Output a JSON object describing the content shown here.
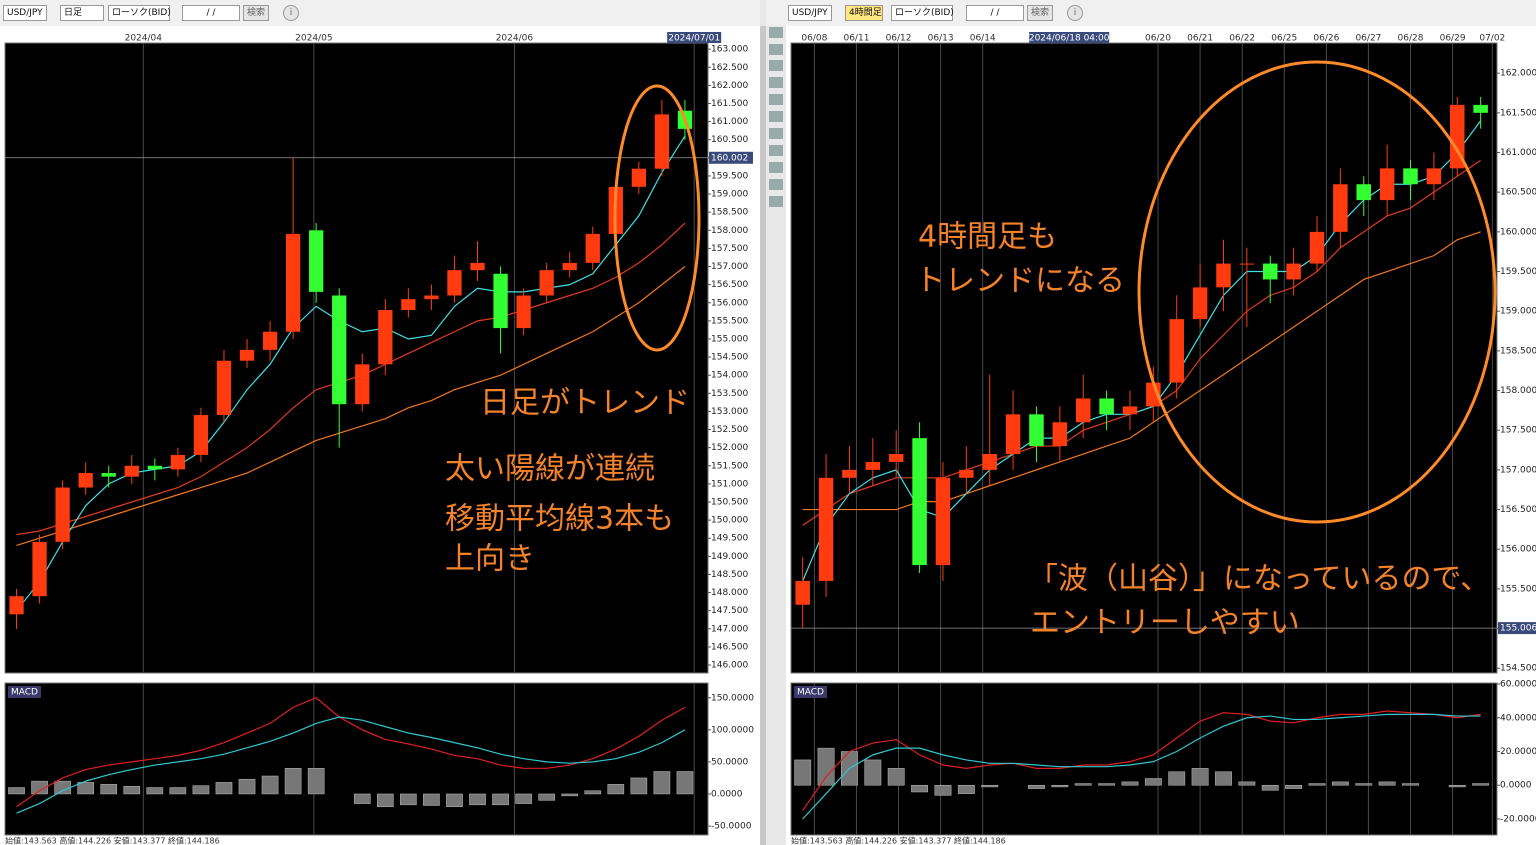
{
  "toolbars": [
    {
      "symbol": "USD/JPY",
      "period": "日足",
      "price_type": "ローソク(BID)",
      "date": "/ /",
      "search": "検索"
    },
    {
      "symbol": "USD/JPY",
      "period": "4時間足",
      "price_type": "ローソク(BID)",
      "date": "/ /",
      "search": "検索"
    }
  ],
  "status_bar": [
    "始値:143.563 高値:144.226 安値:143.377 終値:144.186",
    "始値:143.563 高値:144.226 安値:143.377 終値:144.186"
  ],
  "chart_data": [
    {
      "type": "candlestick",
      "xlim": [
        -0.5,
        30
      ],
      "ylim": [
        145.78,
        163.17
      ],
      "xticks": [
        {
          "value": 5.5,
          "label": "2024/04"
        },
        {
          "value": 12.9,
          "label": "2024/05"
        },
        {
          "value": 21.6,
          "label": "2024/06"
        },
        {
          "value": 29.4,
          "label": "2024/07/01"
        }
      ],
      "yticks": [
        {
          "value": 163,
          "label": "163.000"
        },
        {
          "value": 162.5,
          "label": "162.500"
        },
        {
          "value": 162,
          "label": "162.000"
        },
        {
          "value": 161.5,
          "label": "161.500"
        },
        {
          "value": 161,
          "label": "161.000"
        },
        {
          "value": 160.5,
          "label": "160.500"
        },
        {
          "value": 160,
          "label": "160.000"
        },
        {
          "value": 159.5,
          "label": "159.500"
        },
        {
          "value": 159,
          "label": "159.000"
        },
        {
          "value": 158.5,
          "label": "158.500"
        },
        {
          "value": 158,
          "label": "158.000"
        },
        {
          "value": 157.5,
          "label": "157.500"
        },
        {
          "value": 157,
          "label": "157.000"
        },
        {
          "value": 156.5,
          "label": "156.500"
        },
        {
          "value": 156,
          "label": "156.000"
        },
        {
          "value": 155.5,
          "label": "155.500"
        },
        {
          "value": 155,
          "label": "155.000"
        },
        {
          "value": 154.5,
          "label": "154.500"
        },
        {
          "value": 154,
          "label": "154.000"
        },
        {
          "value": 153.5,
          "label": "153.500"
        },
        {
          "value": 153,
          "label": "153.000"
        },
        {
          "value": 152.5,
          "label": "152.500"
        },
        {
          "value": 152,
          "label": "152.000"
        },
        {
          "value": 151.5,
          "label": "151.500"
        },
        {
          "value": 151,
          "label": "151.000"
        },
        {
          "value": 150.5,
          "label": "150.500"
        },
        {
          "value": 150,
          "label": "150.000"
        },
        {
          "value": 149.5,
          "label": "149.500"
        },
        {
          "value": 149,
          "label": "149.000"
        },
        {
          "value": 148.5,
          "label": "148.500"
        },
        {
          "value": 148,
          "label": "148.000"
        },
        {
          "value": 147.5,
          "label": "147.500"
        },
        {
          "value": 147,
          "label": "147.000"
        },
        {
          "value": 146.5,
          "label": "146.500"
        },
        {
          "value": 146,
          "label": "146.000"
        }
      ],
      "crosshair": 160.002,
      "up_color": "#ff3b0f",
      "down_color": "#33ff33",
      "open": [
        147.4,
        147.9,
        149.4,
        150.9,
        151.3,
        151.2,
        151.5,
        151.4,
        151.8,
        152.9,
        154.4,
        154.7,
        155.2,
        158.0,
        156.2,
        153.2,
        154.3,
        155.8,
        156.1,
        156.2,
        156.9,
        156.8,
        155.3,
        156.2,
        156.9,
        157.1,
        157.9,
        159.2,
        159.7,
        161.3
      ],
      "high": [
        148.1,
        149.6,
        151.1,
        151.6,
        151.5,
        151.8,
        151.7,
        152.0,
        153.1,
        154.7,
        155.0,
        155.5,
        160.0,
        158.2,
        156.4,
        154.6,
        156.1,
        156.4,
        156.5,
        157.3,
        157.7,
        157.0,
        156.4,
        157.1,
        157.4,
        158.1,
        159.4,
        159.9,
        161.6,
        161.6
      ],
      "low": [
        147.0,
        147.7,
        149.2,
        150.7,
        150.9,
        151.0,
        151.1,
        151.2,
        151.6,
        152.7,
        154.2,
        154.4,
        155.0,
        156.0,
        152.0,
        153.0,
        154.0,
        155.6,
        155.8,
        156.0,
        156.6,
        154.6,
        155.1,
        156.0,
        156.7,
        156.9,
        157.7,
        159.0,
        159.5,
        160.5
      ],
      "close": [
        147.9,
        149.4,
        150.9,
        151.3,
        151.2,
        151.5,
        151.4,
        151.8,
        152.9,
        154.4,
        154.7,
        155.2,
        157.9,
        156.3,
        153.2,
        154.3,
        155.8,
        156.1,
        156.2,
        156.9,
        157.1,
        155.3,
        156.2,
        156.9,
        157.1,
        157.9,
        159.2,
        159.7,
        161.2,
        160.8
      ],
      "series": [
        {
          "color": "#f07820",
          "values": [
            149.3,
            149.5,
            149.7,
            149.9,
            150.1,
            150.3,
            150.5,
            150.7,
            150.9,
            151.1,
            151.3,
            151.6,
            151.9,
            152.2,
            152.4,
            152.6,
            152.8,
            153.1,
            153.3,
            153.6,
            153.8,
            154.0,
            154.3,
            154.6,
            154.9,
            155.2,
            155.6,
            156.0,
            156.5,
            157.0
          ]
        },
        {
          "color": "#e03a20",
          "values": [
            149.6,
            149.7,
            149.9,
            150.1,
            150.3,
            150.5,
            150.7,
            150.9,
            151.2,
            151.6,
            152.0,
            152.5,
            153.1,
            153.6,
            153.8,
            154.0,
            154.3,
            154.6,
            154.9,
            155.2,
            155.5,
            155.6,
            155.8,
            156.0,
            156.2,
            156.4,
            156.7,
            157.1,
            157.6,
            158.2
          ]
        },
        {
          "color": "#40e0e8",
          "values": [
            147.5,
            148.3,
            149.4,
            150.4,
            151.0,
            151.3,
            151.4,
            151.5,
            151.9,
            152.7,
            153.6,
            154.3,
            155.3,
            155.9,
            155.5,
            155.2,
            155.3,
            155.0,
            155.1,
            155.9,
            156.4,
            156.3,
            156.3,
            156.4,
            156.5,
            156.8,
            157.6,
            158.4,
            159.6,
            160.6
          ]
        }
      ],
      "annotations": [
        "日足がトレンド",
        "太い陽線が連続",
        "移動平均線3本も",
        "上向き"
      ]
    },
    {
      "type": "macd",
      "title": "MACD",
      "ylim": [
        -64,
        173
      ],
      "yticks": [
        {
          "value": 150,
          "label": "150.0000"
        },
        {
          "value": 100,
          "label": "100.0000"
        },
        {
          "value": 50,
          "label": "50.0000"
        },
        {
          "value": 0,
          "label": "0.0000"
        },
        {
          "value": -50,
          "label": "-50.0000"
        }
      ],
      "histogram": [
        10,
        20,
        20,
        18,
        15,
        12,
        10,
        10,
        13,
        18,
        23,
        28,
        40,
        40,
        0,
        -15,
        -20,
        -17,
        -18,
        -20,
        -17,
        -17,
        -15,
        -10,
        -3,
        5,
        15,
        25,
        35,
        35
      ],
      "series": [
        {
          "color": "#e02020",
          "values": [
            -20,
            5,
            25,
            38,
            45,
            50,
            55,
            60,
            68,
            80,
            95,
            110,
            135,
            150,
            120,
            100,
            85,
            78,
            70,
            60,
            55,
            45,
            40,
            40,
            45,
            55,
            70,
            90,
            115,
            135
          ]
        },
        {
          "color": "#30c8d0",
          "values": [
            -30,
            -15,
            5,
            20,
            30,
            38,
            45,
            50,
            55,
            62,
            72,
            82,
            95,
            110,
            120,
            115,
            105,
            95,
            88,
            80,
            72,
            62,
            55,
            50,
            48,
            50,
            55,
            65,
            80,
            100
          ]
        }
      ]
    },
    {
      "type": "candlestick",
      "xlim": [
        -0.5,
        29.7
      ],
      "ylim": [
        154.44,
        162.38
      ],
      "xticks": [
        {
          "value": 0.5,
          "label": "06/08"
        },
        {
          "value": 2.3,
          "label": "06/11"
        },
        {
          "value": 4.1,
          "label": "06/12"
        },
        {
          "value": 5.9,
          "label": "06/13"
        },
        {
          "value": 7.7,
          "label": "06/14"
        },
        {
          "value": 15.2,
          "label": "06/20"
        },
        {
          "value": 17,
          "label": "06/21"
        },
        {
          "value": 18.8,
          "label": "06/22"
        },
        {
          "value": 20.6,
          "label": "06/25"
        },
        {
          "value": 22.4,
          "label": "06/26"
        },
        {
          "value": 24.2,
          "label": "06/27"
        },
        {
          "value": 26,
          "label": "06/28"
        },
        {
          "value": 27.8,
          "label": "06/29"
        },
        {
          "value": 29.5,
          "label": "07/02"
        }
      ],
      "crosshair_x": {
        "value": 11.4,
        "label": "2024/06/18 04:00"
      },
      "yticks": [
        {
          "value": 162,
          "label": "162.000"
        },
        {
          "value": 161.5,
          "label": "161.500"
        },
        {
          "value": 161,
          "label": "161.000"
        },
        {
          "value": 160.5,
          "label": "160.500"
        },
        {
          "value": 160,
          "label": "160.000"
        },
        {
          "value": 159.5,
          "label": "159.500"
        },
        {
          "value": 159,
          "label": "159.000"
        },
        {
          "value": 158.5,
          "label": "158.500"
        },
        {
          "value": 158,
          "label": "158.000"
        },
        {
          "value": 157.5,
          "label": "157.500"
        },
        {
          "value": 157,
          "label": "157.000"
        },
        {
          "value": 156.5,
          "label": "156.500"
        },
        {
          "value": 156,
          "label": "156.000"
        },
        {
          "value": 155.5,
          "label": "155.500"
        },
        {
          "value": 155,
          "label": "155.000"
        },
        {
          "value": 154.5,
          "label": "154.500"
        }
      ],
      "crosshair": 155.006,
      "up_color": "#ff3b0f",
      "down_color": "#33ff33",
      "open": [
        155.3,
        155.6,
        156.9,
        157.0,
        157.1,
        157.4,
        155.8,
        156.9,
        157.0,
        157.2,
        157.7,
        157.3,
        157.6,
        157.9,
        157.7,
        157.8,
        158.1,
        158.9,
        159.3,
        159.6,
        159.6,
        159.4,
        159.6,
        160.0,
        160.6,
        160.4,
        160.8,
        160.6,
        160.8,
        161.6
      ],
      "high": [
        155.9,
        157.2,
        157.3,
        157.4,
        157.5,
        157.6,
        157.1,
        157.3,
        158.2,
        158.0,
        157.8,
        157.8,
        158.2,
        158.0,
        158.0,
        158.3,
        159.2,
        159.6,
        159.9,
        159.8,
        159.7,
        159.8,
        160.2,
        160.8,
        160.7,
        161.1,
        160.9,
        161.0,
        161.7,
        161.7
      ],
      "low": [
        155.0,
        155.4,
        156.7,
        156.8,
        156.9,
        155.7,
        155.6,
        156.7,
        156.8,
        157.0,
        157.1,
        157.1,
        157.4,
        157.5,
        157.5,
        157.6,
        157.9,
        158.8,
        159.0,
        158.8,
        159.1,
        159.2,
        159.5,
        159.8,
        160.2,
        160.2,
        160.4,
        160.4,
        160.7,
        161.3
      ],
      "close": [
        155.6,
        156.9,
        157.0,
        157.1,
        157.2,
        155.8,
        156.9,
        157.0,
        157.2,
        157.7,
        157.3,
        157.6,
        157.9,
        157.7,
        157.8,
        158.1,
        158.9,
        159.3,
        159.6,
        159.6,
        159.4,
        159.6,
        160.0,
        160.6,
        160.4,
        160.8,
        160.6,
        160.8,
        161.6,
        161.5
      ],
      "series": [
        {
          "color": "#f07820",
          "values": [
            156.5,
            156.5,
            156.5,
            156.5,
            156.5,
            156.6,
            156.6,
            156.7,
            156.8,
            156.9,
            157.0,
            157.1,
            157.2,
            157.3,
            157.4,
            157.6,
            157.8,
            158.0,
            158.2,
            158.4,
            158.6,
            158.8,
            159.0,
            159.2,
            159.4,
            159.5,
            159.6,
            159.7,
            159.9,
            160.0
          ]
        },
        {
          "color": "#e03a20",
          "values": [
            156.3,
            156.5,
            156.7,
            156.8,
            156.9,
            156.9,
            156.9,
            157.0,
            157.1,
            157.2,
            157.3,
            157.3,
            157.5,
            157.6,
            157.7,
            157.8,
            158.0,
            158.4,
            158.7,
            159.0,
            159.2,
            159.3,
            159.5,
            159.8,
            160.0,
            160.2,
            160.3,
            160.5,
            160.7,
            160.9
          ]
        },
        {
          "color": "#40e0e8",
          "values": [
            155.6,
            156.3,
            156.7,
            156.9,
            157.0,
            156.5,
            156.4,
            156.7,
            157.0,
            157.2,
            157.4,
            157.4,
            157.6,
            157.7,
            157.7,
            157.8,
            158.2,
            158.7,
            159.2,
            159.5,
            159.5,
            159.5,
            159.7,
            160.1,
            160.4,
            160.6,
            160.6,
            160.7,
            161.0,
            161.4
          ]
        }
      ],
      "annotations": [
        "4時間足も",
        "トレンドになる",
        "「波（山谷）」になっているので、",
        "エントリーしやすい"
      ]
    },
    {
      "type": "macd",
      "title": "MACD",
      "ylim": [
        -29.5,
        60.6
      ],
      "yticks": [
        {
          "value": 60,
          "label": "60.0000"
        },
        {
          "value": 40,
          "label": "40.0000"
        },
        {
          "value": 20,
          "label": "20.0000"
        },
        {
          "value": 0,
          "label": "0.0000"
        },
        {
          "value": -20,
          "label": "-20.0000"
        }
      ],
      "histogram": [
        15,
        22,
        20,
        15,
        10,
        -4,
        -6,
        -5,
        -1,
        0,
        -2,
        -1,
        1,
        1,
        2,
        4,
        8,
        10,
        8,
        2,
        -3,
        -2,
        1,
        2,
        1,
        2,
        1,
        0,
        -1,
        1
      ],
      "series": [
        {
          "color": "#e02020",
          "values": [
            -15,
            5,
            20,
            25,
            27,
            18,
            12,
            10,
            12,
            13,
            10,
            10,
            12,
            12,
            14,
            18,
            28,
            38,
            43,
            42,
            38,
            37,
            40,
            42,
            42,
            44,
            43,
            42,
            40,
            42
          ]
        },
        {
          "color": "#30c8d0",
          "values": [
            -20,
            -5,
            10,
            18,
            22,
            22,
            18,
            15,
            13,
            13,
            12,
            11,
            11,
            11,
            12,
            14,
            20,
            28,
            35,
            40,
            41,
            39,
            39,
            40,
            41,
            42,
            42,
            42,
            41,
            41
          ]
        }
      ]
    }
  ]
}
